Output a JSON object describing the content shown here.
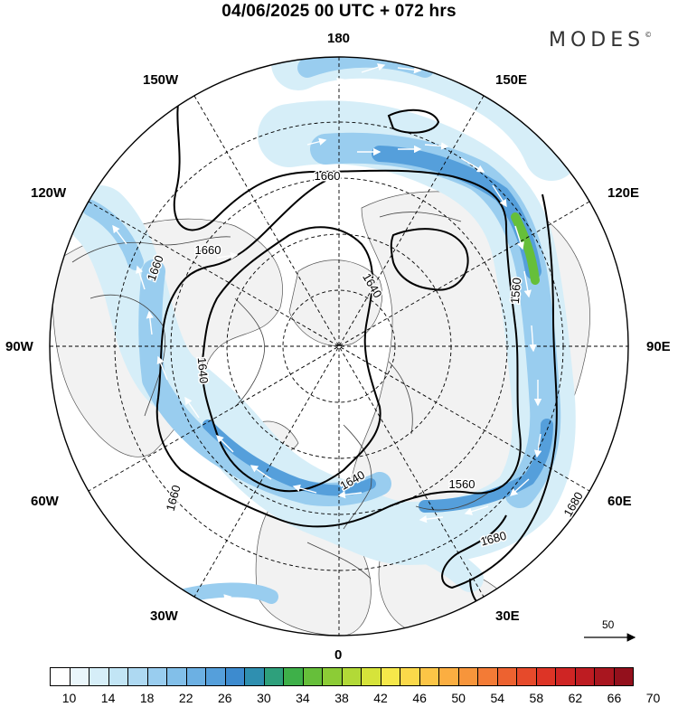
{
  "title": "04/06/2025  00 UTC  + 072 hrs",
  "brand": "MODES",
  "brand_mark": "©",
  "longitude_labels": {
    "n180": "180",
    "w150": "150W",
    "e150": "150E",
    "w120": "120W",
    "e120": "120E",
    "w90": "90W",
    "e90": "90E",
    "w60": "60W",
    "e60": "60E",
    "w30": "30W",
    "e30": "30E",
    "s0": "0"
  },
  "contour_labels": [
    "1660",
    "1660",
    "1640",
    "1660",
    "1640",
    "1560",
    "1640",
    "1560",
    "1660",
    "1680",
    "1680"
  ],
  "reference_vector": "50",
  "colorbar": {
    "colors": [
      "#ffffff",
      "#eaf6fb",
      "#d6eef8",
      "#c2e5f5",
      "#aed9f2",
      "#99cdef",
      "#82bfe9",
      "#6cb0e3",
      "#559fdb",
      "#3d8bcf",
      "#2f8fb0",
      "#2ea07c",
      "#3eb049",
      "#66bf3a",
      "#8ccc36",
      "#b2d937",
      "#d6e33a",
      "#f6e84a",
      "#fbd94a",
      "#fcc546",
      "#fbae41",
      "#f7953b",
      "#f37b36",
      "#ed6230",
      "#e64a2b",
      "#dd3426",
      "#cf2524",
      "#be1c22",
      "#a9161f",
      "#93101c"
    ],
    "ticks": [
      "10",
      "14",
      "18",
      "22",
      "26",
      "30",
      "34",
      "38",
      "42",
      "46",
      "50",
      "54",
      "58",
      "62",
      "66",
      "70"
    ]
  },
  "map_colors": {
    "land": "#f2f2f2",
    "coast": "#444444",
    "grid": "#000000",
    "contour": "#000000",
    "jet_light": "#d6eef8",
    "jet_mid": "#99cdef",
    "jet_strong": "#559fdb",
    "jet_core": "#66bf3a"
  }
}
